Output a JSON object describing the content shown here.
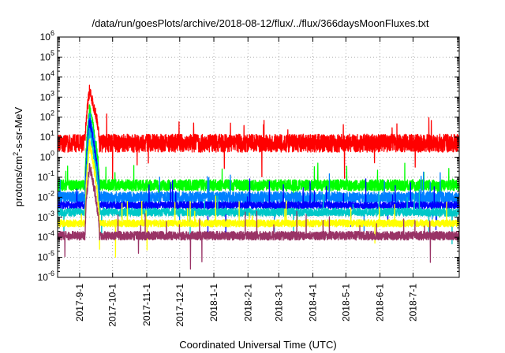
{
  "chart_data": {
    "type": "line",
    "title": "/data/run/goesPlots/archive/2018-08-12/flux/../flux/366daysMoonFluxes.txt",
    "xlabel": "Coordinated Universal Time (UTC)",
    "ylabel": "protons/cm2-s-sr-MeV",
    "y_scale": "log",
    "ylim": [
      1e-06,
      1000000.0
    ],
    "xlim": [
      "2017-08-12",
      "2018-08-12"
    ],
    "grid": true,
    "y_ticks": [
      {
        "base": "10",
        "exp": "-6"
      },
      {
        "base": "10",
        "exp": "-5"
      },
      {
        "base": "10",
        "exp": "-4"
      },
      {
        "base": "10",
        "exp": "-3"
      },
      {
        "base": "10",
        "exp": "-2"
      },
      {
        "base": "10",
        "exp": "-1"
      },
      {
        "base": "10",
        "exp": "0"
      },
      {
        "base": "10",
        "exp": "1"
      },
      {
        "base": "10",
        "exp": "2"
      },
      {
        "base": "10",
        "exp": "3"
      },
      {
        "base": "10",
        "exp": "4"
      },
      {
        "base": "10",
        "exp": "5"
      },
      {
        "base": "10",
        "exp": "6"
      }
    ],
    "x_ticks": [
      {
        "label": "2017-9-1",
        "date": "2017-09-01"
      },
      {
        "label": "2017-10-1",
        "date": "2017-10-01"
      },
      {
        "label": "2017-11-1",
        "date": "2017-11-01"
      },
      {
        "label": "2017-12-1",
        "date": "2017-12-01"
      },
      {
        "label": "2018-1-1",
        "date": "2018-01-01"
      },
      {
        "label": "2018-2-1",
        "date": "2018-02-01"
      },
      {
        "label": "2018-3-1",
        "date": "2018-03-01"
      },
      {
        "label": "2018-4-1",
        "date": "2018-04-01"
      },
      {
        "label": "2018-5-1",
        "date": "2018-05-01"
      },
      {
        "label": "2018-6-1",
        "date": "2018-06-01"
      },
      {
        "label": "2018-7-1",
        "date": "2018-07-01"
      }
    ],
    "event": {
      "start": "2017-09-06",
      "peak": "2017-09-10",
      "end": "2017-09-19"
    },
    "series": [
      {
        "color": "#ff0000",
        "baseline": 5,
        "noise_decades": 0.45,
        "peak": 2000
      },
      {
        "color": "#00ff00",
        "baseline": 0.04,
        "noise_decades": 0.28,
        "peak": 250
      },
      {
        "color": "#0080ff",
        "baseline": 0.01,
        "noise_decades": 0.28,
        "peak": 120
      },
      {
        "color": "#0000ff",
        "baseline": 0.004,
        "noise_decades": 0.18,
        "peak": 60
      },
      {
        "color": "#00c8c8",
        "baseline": 0.0018,
        "noise_decades": 0.2,
        "peak": 20
      },
      {
        "color": "#ffff00",
        "baseline": 0.0005,
        "noise_decades": 0.18,
        "peak": 5
      },
      {
        "color": "#993366",
        "baseline": 0.00012,
        "noise_decades": 0.22,
        "peak": 0.4
      }
    ]
  }
}
